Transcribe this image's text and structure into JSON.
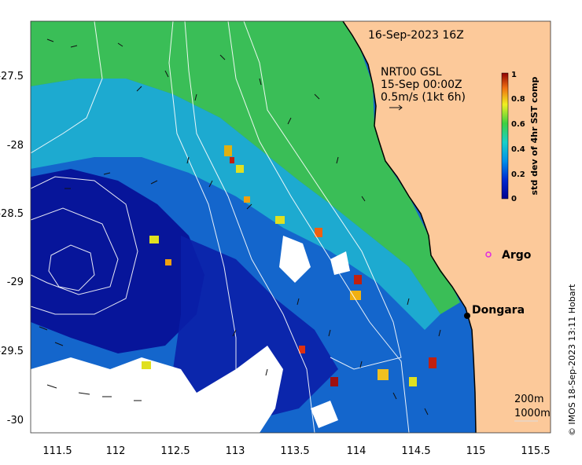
{
  "title_date": "16-Sep-2023 16Z",
  "current_info": {
    "line1": "NRT00 GSL",
    "line2": "15-Sep 00:00Z",
    "line3": "0.5m/s (1kt 6h)"
  },
  "colorbar": {
    "label": "std dev of 4hr SST comp",
    "ticks": [
      "0",
      "0.2",
      "0.4",
      "0.6",
      "0.8",
      "1"
    ]
  },
  "axes": {
    "x_ticks": [
      "111.5",
      "112",
      "112.5",
      "113",
      "113.5",
      "114",
      "114.5",
      "115",
      "115.5"
    ],
    "y_ticks": [
      "-27.5",
      "-28",
      "-28.5",
      "-29",
      "-29.5",
      "-30"
    ]
  },
  "places": [
    {
      "name": "Argo",
      "lon": 114.9,
      "lat": -28.83,
      "marker": "circle"
    },
    {
      "name": "Dongara",
      "lon": 114.93,
      "lat": -29.25,
      "marker": "dot"
    }
  ],
  "isobath_labels": [
    "200m",
    "1000m"
  ],
  "credit": "© IMOS 18-Sep-2023 13:11 Hobart",
  "colors": {
    "land": "#fcc99a",
    "ocean_low": "#00138f",
    "ocean_mid": "#18b4d2",
    "ocean_high": "#3fd04a",
    "argo_marker": "#e02ae0"
  }
}
